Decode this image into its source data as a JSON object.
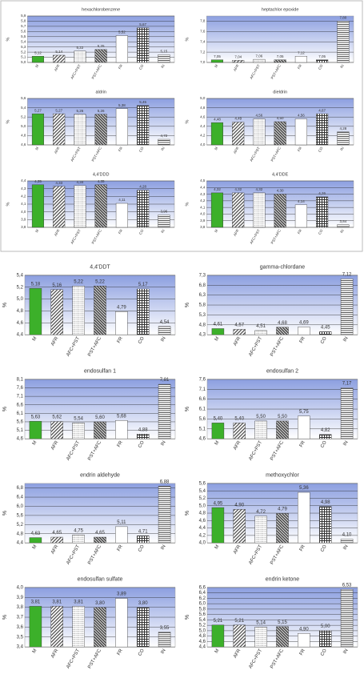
{
  "chart_data": [
    {
      "type": "bar",
      "title": "hexachlorobenzene",
      "y_label": "%",
      "color": "#3cb02a",
      "categories": [
        "M",
        "AFR",
        "AFC+PST",
        "PST+AFC",
        "FR",
        "CO",
        "IN"
      ],
      "values": [
        5.12,
        5.14,
        5.22,
        5.25,
        5.52,
        5.67,
        5.15
      ],
      "value_labels": [
        "5,12",
        "5,14",
        "5,22",
        "5,25",
        "5,52",
        "5,67",
        "5,15"
      ],
      "ylim": [
        5.0,
        5.9
      ],
      "yticks": [
        {
          "value": 5.0,
          "label": "5,0"
        },
        {
          "value": 5.1,
          "label": "5,1"
        },
        {
          "value": 5.2,
          "label": "5,2"
        },
        {
          "value": 5.3,
          "label": "5,3"
        },
        {
          "value": 5.4,
          "label": "5,4"
        },
        {
          "value": 5.5,
          "label": "5,5"
        },
        {
          "value": 5.6,
          "label": "5,6"
        },
        {
          "value": 5.7,
          "label": "5,7"
        },
        {
          "value": 5.8,
          "label": "5,8"
        },
        {
          "value": 5.9,
          "label": "5,9"
        }
      ]
    },
    {
      "type": "bar",
      "title": "heptachlor epoxide",
      "y_label": "%",
      "color": "#3cb02a",
      "categories": [
        "M",
        "AFR",
        "AFC+PST",
        "PST+AFC",
        "FR",
        "CO",
        "IN"
      ],
      "values": [
        7.05,
        7.04,
        7.06,
        7.05,
        7.12,
        7.05,
        7.8
      ],
      "value_labels": [
        "7,05",
        "7,04",
        "7,06",
        "7,05",
        "7,12",
        "7,05",
        "7,80"
      ],
      "ylim": [
        7.0,
        7.9
      ],
      "yticks": [
        {
          "value": 7.0,
          "label": "7,0"
        },
        {
          "value": 7.2,
          "label": "7,2"
        },
        {
          "value": 7.4,
          "label": "7,4"
        },
        {
          "value": 7.6,
          "label": "7,6"
        },
        {
          "value": 7.8,
          "label": "7,8"
        }
      ]
    },
    {
      "type": "bar",
      "title": "aldrin",
      "y_label": "%",
      "color": "#3cb02a",
      "categories": [
        "M",
        "AFR",
        "AFC+PST",
        "PST+AFC",
        "FR",
        "CO",
        "IN"
      ],
      "values": [
        5.27,
        5.27,
        5.26,
        5.26,
        5.38,
        5.45,
        4.72
      ],
      "value_labels": [
        "5,27",
        "5,27",
        "5,26",
        "5,26",
        "5,38",
        "5,45",
        "4,72"
      ],
      "ylim": [
        4.6,
        5.6
      ],
      "yticks": [
        {
          "value": 4.6,
          "label": "4,6"
        },
        {
          "value": 4.8,
          "label": "4,8"
        },
        {
          "value": 5.0,
          "label": "5,0"
        },
        {
          "value": 5.2,
          "label": "5,2"
        },
        {
          "value": 5.4,
          "label": "5,4"
        },
        {
          "value": 5.6,
          "label": "5,6"
        }
      ]
    },
    {
      "type": "bar",
      "title": "dieldrin",
      "y_label": "%",
      "color": "#3cb02a",
      "categories": [
        "M",
        "AFR",
        "AFC+PST",
        "PST+AFC",
        "FR",
        "CO",
        "IN"
      ],
      "values": [
        4.48,
        4.49,
        4.56,
        4.5,
        4.56,
        4.67,
        4.28
      ],
      "value_labels": [
        "4,48",
        "4,49",
        "4,56",
        "4,50",
        "4,56",
        "4,67",
        "4,28"
      ],
      "ylim": [
        4.0,
        5.0
      ],
      "yticks": [
        {
          "value": 4.0,
          "label": "4,0"
        },
        {
          "value": 4.2,
          "label": "4,2"
        },
        {
          "value": 4.4,
          "label": "4,4"
        },
        {
          "value": 4.6,
          "label": "4,6"
        },
        {
          "value": 4.8,
          "label": "4,8"
        },
        {
          "value": 5.0,
          "label": "5,0"
        }
      ]
    },
    {
      "type": "bar",
      "title": "4,4'DDD",
      "y_label": "%",
      "color": "#3cb02a",
      "categories": [
        "M",
        "AFR",
        "AFC+PST",
        "PST+AFC",
        "FR",
        "CO",
        "IN"
      ],
      "values": [
        4.35,
        4.33,
        4.34,
        4.35,
        4.11,
        4.28,
        3.96
      ],
      "value_labels": [
        "4,35",
        "4,33",
        "4,34",
        "4,35",
        "4,11",
        "4,28",
        "3,96"
      ],
      "ylim": [
        3.8,
        4.4
      ],
      "yticks": [
        {
          "value": 3.8,
          "label": "3,8"
        },
        {
          "value": 3.9,
          "label": "3,9"
        },
        {
          "value": 4.0,
          "label": "4,0"
        },
        {
          "value": 4.1,
          "label": "4,1"
        },
        {
          "value": 4.2,
          "label": "4,2"
        },
        {
          "value": 4.3,
          "label": "4,3"
        },
        {
          "value": 4.4,
          "label": "4,4"
        }
      ]
    },
    {
      "type": "bar",
      "title": "4,4'DDE",
      "y_label": "%",
      "color": "#3cb02a",
      "categories": [
        "M",
        "AFR",
        "AFC+PST",
        "PST+AFC",
        "FR",
        "CO",
        "IN"
      ],
      "values": [
        4.32,
        4.32,
        4.32,
        4.3,
        4.14,
        4.26,
        3.84
      ],
      "value_labels": [
        "4,32",
        "4,32",
        "4,32",
        "4,30",
        "4,14",
        "4,26",
        "3,84"
      ],
      "ylim": [
        3.8,
        4.5
      ],
      "yticks": [
        {
          "value": 3.8,
          "label": "3,8"
        },
        {
          "value": 3.9,
          "label": "3,9"
        },
        {
          "value": 4.0,
          "label": "4,0"
        },
        {
          "value": 4.1,
          "label": "4,1"
        },
        {
          "value": 4.2,
          "label": "4,2"
        },
        {
          "value": 4.3,
          "label": "4,3"
        },
        {
          "value": 4.4,
          "label": "4,4"
        },
        {
          "value": 4.5,
          "label": "4,5"
        }
      ]
    },
    {
      "type": "bar",
      "title": "4,4'DDT",
      "y_label": "%",
      "color": "#3cb02a",
      "categories": [
        "M",
        "AFR",
        "AFC+PST",
        "PST+AFC",
        "FR",
        "CO",
        "IN"
      ],
      "values": [
        5.18,
        5.16,
        5.22,
        5.22,
        4.79,
        5.17,
        4.54
      ],
      "value_labels": [
        "5,18",
        "5,16",
        "5,22",
        "5,22",
        "4,79",
        "5,17",
        "4,54"
      ],
      "ylim": [
        4.4,
        5.4
      ],
      "yticks": [
        {
          "value": 4.4,
          "label": "4,4"
        },
        {
          "value": 4.6,
          "label": "4,6"
        },
        {
          "value": 4.8,
          "label": "4,8"
        },
        {
          "value": 5.0,
          "label": "5,0"
        },
        {
          "value": 5.2,
          "label": "5,2"
        },
        {
          "value": 5.4,
          "label": "5,4"
        }
      ]
    },
    {
      "type": "bar",
      "title": "gamma-chlordane",
      "y_label": "%",
      "color": "#3cb02a",
      "categories": [
        "M",
        "AFR",
        "AFC+PST",
        "PST+AFC",
        "FR",
        "CO",
        "IN"
      ],
      "values": [
        4.61,
        4.57,
        4.51,
        4.68,
        4.69,
        4.45,
        7.12
      ],
      "value_labels": [
        "4,61",
        "4,57",
        "4,51",
        "4,68",
        "4,69",
        "4,45",
        "7,12"
      ],
      "ylim": [
        4.3,
        7.3
      ],
      "yticks": [
        {
          "value": 4.3,
          "label": "4,3"
        },
        {
          "value": 4.8,
          "label": "4,8"
        },
        {
          "value": 5.3,
          "label": "5,3"
        },
        {
          "value": 5.8,
          "label": "5,8"
        },
        {
          "value": 6.3,
          "label": "6,3"
        },
        {
          "value": 6.8,
          "label": "6,8"
        },
        {
          "value": 7.3,
          "label": "7,3"
        }
      ]
    },
    {
      "type": "bar",
      "title": "endosulfan 1",
      "y_label": "%",
      "color": "#3cb02a",
      "categories": [
        "M",
        "AFR",
        "AFC+PST",
        "PST+AFC",
        "FR",
        "CO",
        "IN"
      ],
      "values": [
        5.63,
        5.62,
        5.54,
        5.6,
        5.68,
        4.88,
        7.81
      ],
      "value_labels": [
        "5,63",
        "5,62",
        "5,54",
        "5,60",
        "5,68",
        "4,88",
        "7,81"
      ],
      "ylim": [
        4.6,
        8.1
      ],
      "yticks": [
        {
          "value": 4.6,
          "label": "4,6"
        },
        {
          "value": 5.1,
          "label": "5,1"
        },
        {
          "value": 5.6,
          "label": "5,6"
        },
        {
          "value": 6.1,
          "label": "6,1"
        },
        {
          "value": 6.6,
          "label": "6,6"
        },
        {
          "value": 7.1,
          "label": "7,1"
        },
        {
          "value": 7.6,
          "label": "7,6"
        },
        {
          "value": 8.1,
          "label": "8,1"
        }
      ]
    },
    {
      "type": "bar",
      "title": "endosulfan 2",
      "y_label": "%",
      "color": "#3cb02a",
      "categories": [
        "M",
        "AFR",
        "AFC+PST",
        "PST+AFC",
        "FR",
        "CO",
        "IN"
      ],
      "values": [
        5.4,
        5.4,
        5.5,
        5.5,
        5.75,
        4.82,
        7.17
      ],
      "value_labels": [
        "5,40",
        "5,40",
        "5,50",
        "5,50",
        "5,75",
        "4,82",
        "7,17"
      ],
      "ylim": [
        4.6,
        7.6
      ],
      "yticks": [
        {
          "value": 4.6,
          "label": "4,6"
        },
        {
          "value": 5.1,
          "label": "5,1"
        },
        {
          "value": 5.6,
          "label": "5,6"
        },
        {
          "value": 6.1,
          "label": "6,1"
        },
        {
          "value": 6.6,
          "label": "6,6"
        },
        {
          "value": 7.1,
          "label": "7,1"
        },
        {
          "value": 7.6,
          "label": "7,6"
        }
      ]
    },
    {
      "type": "bar",
      "title": "endrin aldehyde",
      "y_label": "%",
      "color": "#3cb02a",
      "categories": [
        "M",
        "AFR",
        "AFC+PST",
        "PST+AFC",
        "FR",
        "CO",
        "IN"
      ],
      "values": [
        4.63,
        4.65,
        4.75,
        4.65,
        5.11,
        4.71,
        6.88
      ],
      "value_labels": [
        "4,63",
        "4,65",
        "4,75",
        "4,65",
        "5,11",
        "4,71",
        "6,88"
      ],
      "ylim": [
        4.4,
        7.0
      ],
      "yticks": [
        {
          "value": 4.4,
          "label": "4,4"
        },
        {
          "value": 4.8,
          "label": "4,8"
        },
        {
          "value": 5.2,
          "label": "5,2"
        },
        {
          "value": 5.6,
          "label": "5,6"
        },
        {
          "value": 6.0,
          "label": "6,0"
        },
        {
          "value": 6.4,
          "label": "6,4"
        },
        {
          "value": 6.8,
          "label": "6,8"
        }
      ]
    },
    {
      "type": "bar",
      "title": "methoxychlor",
      "y_label": "%",
      "color": "#3cb02a",
      "categories": [
        "M",
        "AFR",
        "AFC+PST",
        "PST+AFC",
        "FR",
        "CO",
        "IN"
      ],
      "values": [
        4.95,
        4.9,
        4.72,
        4.79,
        5.36,
        4.98,
        4.1
      ],
      "value_labels": [
        "4,95",
        "4,90",
        "4,72",
        "4,79",
        "5,36",
        "4,98",
        "4,10"
      ],
      "ylim": [
        4.0,
        5.6
      ],
      "yticks": [
        {
          "value": 4.0,
          "label": "4,0"
        },
        {
          "value": 4.2,
          "label": "4,2"
        },
        {
          "value": 4.4,
          "label": "4,4"
        },
        {
          "value": 4.6,
          "label": "4,6"
        },
        {
          "value": 4.8,
          "label": "4,8"
        },
        {
          "value": 5.0,
          "label": "5,0"
        },
        {
          "value": 5.2,
          "label": "5,2"
        },
        {
          "value": 5.4,
          "label": "5,4"
        },
        {
          "value": 5.6,
          "label": "5,6"
        }
      ]
    },
    {
      "type": "bar",
      "title": "endosulfan sulfate",
      "y_label": "%",
      "color": "#3cb02a",
      "categories": [
        "M",
        "AFR",
        "AFC+PST",
        "PST+AFC",
        "FR",
        "CO",
        "IN"
      ],
      "values": [
        3.81,
        3.81,
        3.81,
        3.8,
        3.89,
        3.8,
        3.55
      ],
      "value_labels": [
        "3,81",
        "3,81",
        "3,81",
        "3,80",
        "3,89",
        "3,80",
        "3,55"
      ],
      "ylim": [
        3.4,
        4.0
      ],
      "yticks": [
        {
          "value": 3.4,
          "label": "3,4"
        },
        {
          "value": 3.5,
          "label": "3,5"
        },
        {
          "value": 3.6,
          "label": "3,6"
        },
        {
          "value": 3.7,
          "label": "3,7"
        },
        {
          "value": 3.8,
          "label": "3,8"
        },
        {
          "value": 3.9,
          "label": "3,9"
        },
        {
          "value": 4.0,
          "label": "4,0"
        }
      ]
    },
    {
      "type": "bar",
      "title": "endrin ketone",
      "y_label": "%",
      "color": "#3cb02a",
      "categories": [
        "M",
        "AFR",
        "AFC+PST",
        "PST+AFC",
        "FR",
        "CO",
        "IN"
      ],
      "values": [
        5.21,
        5.21,
        5.14,
        5.15,
        4.9,
        5.0,
        6.53
      ],
      "value_labels": [
        "5,21",
        "5,21",
        "5,14",
        "5,15",
        "4,90",
        "5,00",
        "6,53"
      ],
      "ylim": [
        4.4,
        6.6
      ],
      "yticks": [
        {
          "value": 4.4,
          "label": "4,4"
        },
        {
          "value": 4.6,
          "label": "4,6"
        },
        {
          "value": 4.8,
          "label": "4,8"
        },
        {
          "value": 5.0,
          "label": "5,0"
        },
        {
          "value": 5.2,
          "label": "5,2"
        },
        {
          "value": 5.4,
          "label": "5,4"
        },
        {
          "value": 5.6,
          "label": "5,6"
        },
        {
          "value": 5.8,
          "label": "5,8"
        },
        {
          "value": 6.0,
          "label": "6,0"
        },
        {
          "value": 6.2,
          "label": "6,2"
        },
        {
          "value": 6.4,
          "label": "6,4"
        },
        {
          "value": 6.6,
          "label": "6,6"
        }
      ]
    }
  ]
}
